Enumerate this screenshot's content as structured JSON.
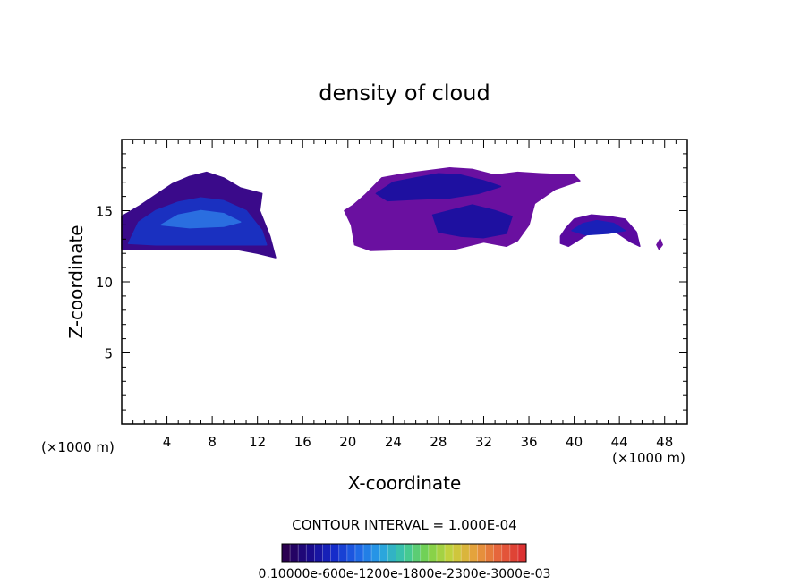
{
  "chart_data": {
    "type": "heatmap",
    "title": "density of cloud",
    "xlabel": "X-coordinate",
    "ylabel": "Z-coordinate",
    "x_unit": "(×1000 m)",
    "y_unit": "(×1000 m)",
    "xlim": [
      0,
      50
    ],
    "ylim": [
      0,
      20
    ],
    "x_ticks": [
      4,
      8,
      12,
      16,
      20,
      24,
      28,
      32,
      36,
      40,
      44,
      48
    ],
    "y_ticks": [
      5,
      10,
      15
    ],
    "contour_interval_label": "CONTOUR INTERVAL = 1.000E-04",
    "colorbar_labels": "0.10000e-600e-1200e-1800e-2300e-3000e-03",
    "colorbar_colors": [
      "#2a0050",
      "#1a0a8a",
      "#1428c8",
      "#1e64e6",
      "#28a0e6",
      "#3cc8a0",
      "#78d24b",
      "#c8d23c",
      "#e6a03c",
      "#e6643c",
      "#dc3232"
    ],
    "cloud_regions": [
      {
        "name": "western cloud",
        "fill": "#3a0a8a",
        "outline": [
          [
            0,
            12.3
          ],
          [
            0,
            14.6
          ],
          [
            1.5,
            15.3
          ],
          [
            3,
            16.1
          ],
          [
            4.5,
            16.9
          ],
          [
            6,
            17.4
          ],
          [
            7.5,
            17.7
          ],
          [
            9,
            17.3
          ],
          [
            10.5,
            16.6
          ],
          [
            12.4,
            16.2
          ],
          [
            12.2,
            15.0
          ],
          [
            13.1,
            13.2
          ],
          [
            13.6,
            11.7
          ],
          [
            12.0,
            12.0
          ],
          [
            10,
            12.3
          ],
          [
            6,
            12.3
          ],
          [
            3,
            12.3
          ]
        ]
      },
      {
        "name": "western core",
        "fill": "#1a30c0",
        "outline": [
          [
            0.6,
            12.7
          ],
          [
            1.5,
            14.2
          ],
          [
            3,
            15.0
          ],
          [
            5,
            15.6
          ],
          [
            7,
            15.9
          ],
          [
            9,
            15.7
          ],
          [
            11,
            15.0
          ],
          [
            12.4,
            13.6
          ],
          [
            12.8,
            12.6
          ],
          [
            10,
            12.6
          ],
          [
            6,
            12.6
          ],
          [
            3,
            12.6
          ]
        ]
      },
      {
        "name": "western bright core",
        "fill": "#2a6ee0",
        "outline": [
          [
            3.5,
            14.0
          ],
          [
            5,
            14.7
          ],
          [
            7,
            15.0
          ],
          [
            9,
            14.8
          ],
          [
            10.5,
            14.2
          ],
          [
            9,
            13.9
          ],
          [
            6,
            13.8
          ]
        ]
      },
      {
        "name": "central cloud",
        "fill": "#6a10a0",
        "outline": [
          [
            19.7,
            15.0
          ],
          [
            20.5,
            15.4
          ],
          [
            21.5,
            16.1
          ],
          [
            23,
            17.3
          ],
          [
            25,
            17.6
          ],
          [
            27,
            17.8
          ],
          [
            29,
            18.0
          ],
          [
            31,
            17.9
          ],
          [
            33,
            17.5
          ],
          [
            35,
            17.7
          ],
          [
            37,
            17.6
          ],
          [
            40,
            17.5
          ],
          [
            40.5,
            17.1
          ],
          [
            38.3,
            16.5
          ],
          [
            36.5,
            15.5
          ],
          [
            36.0,
            14.0
          ],
          [
            35.0,
            12.9
          ],
          [
            34.0,
            12.5
          ],
          [
            32.0,
            12.8
          ],
          [
            29.5,
            12.3
          ],
          [
            26.5,
            12.3
          ],
          [
            22,
            12.2
          ],
          [
            20.6,
            12.6
          ],
          [
            20.3,
            14.0
          ]
        ]
      },
      {
        "name": "central core",
        "fill": "#1e10a0",
        "outline": [
          [
            22.5,
            16.2
          ],
          [
            24,
            17.0
          ],
          [
            26,
            17.3
          ],
          [
            28,
            17.6
          ],
          [
            30,
            17.5
          ],
          [
            32,
            17.1
          ],
          [
            33.5,
            16.7
          ],
          [
            31.5,
            16.2
          ],
          [
            29,
            15.9
          ],
          [
            26,
            15.8
          ],
          [
            23.5,
            15.7
          ]
        ]
      },
      {
        "name": "central lower core",
        "fill": "#1e10a0",
        "outline": [
          [
            27.5,
            14.7
          ],
          [
            29.5,
            15.1
          ],
          [
            31.0,
            15.4
          ],
          [
            33,
            15.0
          ],
          [
            34.5,
            14.6
          ],
          [
            34.0,
            13.4
          ],
          [
            32,
            13.1
          ],
          [
            30,
            13.2
          ],
          [
            28,
            13.5
          ]
        ]
      },
      {
        "name": "eastern cloud",
        "fill": "#5a0aa0",
        "outline": [
          [
            38.8,
            13.2
          ],
          [
            39.3,
            13.8
          ],
          [
            40,
            14.4
          ],
          [
            41.5,
            14.7
          ],
          [
            43,
            14.6
          ],
          [
            44.5,
            14.4
          ],
          [
            45.5,
            13.5
          ],
          [
            45.8,
            12.5
          ],
          [
            45.0,
            12.8
          ],
          [
            43.5,
            13.6
          ],
          [
            41.5,
            13.5
          ],
          [
            39.5,
            12.5
          ],
          [
            38.8,
            12.7
          ]
        ]
      },
      {
        "name": "eastern core",
        "fill": "#1a20b8",
        "outline": [
          [
            39.8,
            13.6
          ],
          [
            40.8,
            14.1
          ],
          [
            42,
            14.3
          ],
          [
            43.5,
            14.1
          ],
          [
            44.5,
            13.6
          ],
          [
            43,
            13.4
          ],
          [
            41,
            13.3
          ]
        ]
      },
      {
        "name": "speck",
        "fill": "#6a10a0",
        "outline": [
          [
            47.3,
            12.6
          ],
          [
            47.6,
            13.0
          ],
          [
            47.8,
            12.6
          ],
          [
            47.5,
            12.3
          ]
        ]
      }
    ]
  }
}
